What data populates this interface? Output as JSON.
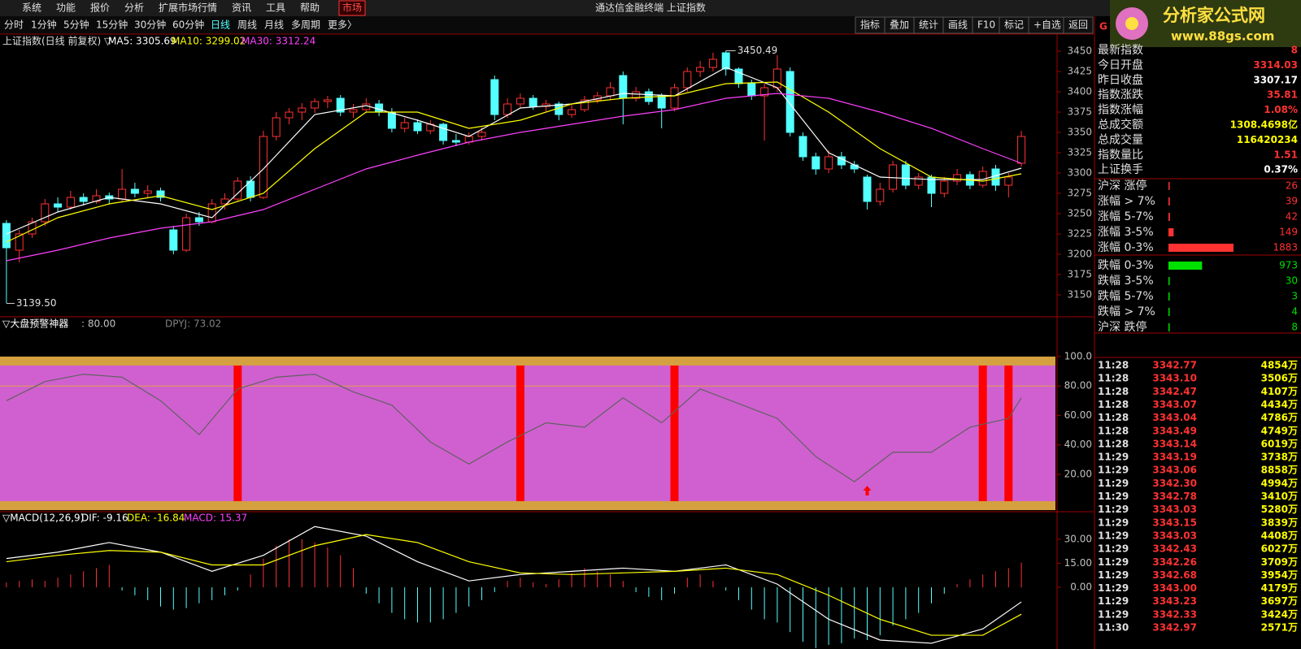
{
  "menu": {
    "items": [
      "系统",
      "功能",
      "报价",
      "分析",
      "扩展市场行情",
      "资讯",
      "工具",
      "帮助",
      "市场"
    ],
    "title": "通达信金融终端 上证指数"
  },
  "logo": {
    "name": "分析家公式网",
    "url": "www.88gs.com"
  },
  "toolbar": {
    "periods": [
      "分时",
      "1分钟",
      "5分钟",
      "15分钟",
      "30分钟",
      "60分钟",
      "日线",
      "周线",
      "月线",
      "多周期",
      "更多〉"
    ],
    "buttons": [
      "指标",
      "叠加",
      "统计",
      "画线",
      "F10",
      "标记",
      "+自选",
      "返回"
    ]
  },
  "main_chart": {
    "header": [
      {
        "text": "上证指数(日线 前复权) ▽",
        "color": "#e0e0e0"
      },
      {
        "text": "MA5: 3305.69",
        "color": "#ffffff"
      },
      {
        "text": "MA10: 3299.02",
        "color": "#ffff00"
      },
      {
        "text": "MA30: 3312.24",
        "color": "#ff40ff"
      }
    ],
    "ylim": [
      3123,
      3471
    ],
    "yticks": [
      3450,
      3425,
      3400,
      3375,
      3350,
      3325,
      3300,
      3275,
      3250,
      3225,
      3200,
      3175,
      3150
    ],
    "candles": [
      [
        3238,
        3242,
        3140,
        3208
      ],
      [
        3205,
        3230,
        3190,
        3225
      ],
      [
        3225,
        3245,
        3220,
        3240
      ],
      [
        3240,
        3268,
        3235,
        3262
      ],
      [
        3262,
        3270,
        3252,
        3258
      ],
      [
        3258,
        3278,
        3255,
        3270
      ],
      [
        3270,
        3275,
        3260,
        3265
      ],
      [
        3265,
        3280,
        3262,
        3272
      ],
      [
        3272,
        3276,
        3262,
        3268
      ],
      [
        3268,
        3305,
        3265,
        3280
      ],
      [
        3280,
        3288,
        3270,
        3275
      ],
      [
        3275,
        3285,
        3270,
        3278
      ],
      [
        3278,
        3282,
        3265,
        3270
      ],
      [
        3230,
        3235,
        3200,
        3205
      ],
      [
        3205,
        3250,
        3203,
        3245
      ],
      [
        3245,
        3252,
        3235,
        3240
      ],
      [
        3240,
        3268,
        3238,
        3262
      ],
      [
        3262,
        3275,
        3255,
        3268
      ],
      [
        3268,
        3295,
        3265,
        3290
      ],
      [
        3290,
        3296,
        3265,
        3270
      ],
      [
        3270,
        3352,
        3268,
        3345
      ],
      [
        3345,
        3375,
        3340,
        3368
      ],
      [
        3368,
        3380,
        3360,
        3375
      ],
      [
        3375,
        3386,
        3365,
        3380
      ],
      [
        3380,
        3392,
        3374,
        3388
      ],
      [
        3388,
        3395,
        3380,
        3390
      ],
      [
        3392,
        3396,
        3370,
        3375
      ],
      [
        3375,
        3385,
        3368,
        3378
      ],
      [
        3378,
        3392,
        3374,
        3385
      ],
      [
        3385,
        3390,
        3370,
        3375
      ],
      [
        3375,
        3380,
        3350,
        3355
      ],
      [
        3355,
        3368,
        3350,
        3362
      ],
      [
        3362,
        3366,
        3348,
        3352
      ],
      [
        3352,
        3365,
        3348,
        3360
      ],
      [
        3360,
        3362,
        3335,
        3340
      ],
      [
        3340,
        3348,
        3333,
        3338
      ],
      [
        3338,
        3350,
        3335,
        3345
      ],
      [
        3345,
        3356,
        3340,
        3350
      ],
      [
        3415,
        3420,
        3365,
        3372
      ],
      [
        3372,
        3392,
        3368,
        3385
      ],
      [
        3385,
        3398,
        3380,
        3392
      ],
      [
        3392,
        3396,
        3378,
        3382
      ],
      [
        3382,
        3390,
        3376,
        3385
      ],
      [
        3385,
        3388,
        3365,
        3372
      ],
      [
        3372,
        3384,
        3368,
        3378
      ],
      [
        3378,
        3395,
        3375,
        3390
      ],
      [
        3390,
        3400,
        3386,
        3395
      ],
      [
        3395,
        3412,
        3390,
        3405
      ],
      [
        3420,
        3425,
        3360,
        3392
      ],
      [
        3392,
        3406,
        3388,
        3400
      ],
      [
        3400,
        3404,
        3384,
        3388
      ],
      [
        3395,
        3398,
        3355,
        3380
      ],
      [
        3380,
        3410,
        3376,
        3405
      ],
      [
        3405,
        3430,
        3400,
        3425
      ],
      [
        3425,
        3438,
        3418,
        3430
      ],
      [
        3430,
        3448,
        3425,
        3440
      ],
      [
        3448,
        3450.49,
        3420,
        3428
      ],
      [
        3428,
        3430,
        3405,
        3410
      ],
      [
        3410,
        3415,
        3390,
        3395
      ],
      [
        3395,
        3410,
        3340,
        3405
      ],
      [
        3405,
        3445,
        3400,
        3428
      ],
      [
        3425,
        3430,
        3345,
        3350
      ],
      [
        3345,
        3350,
        3315,
        3320
      ],
      [
        3320,
        3325,
        3298,
        3305
      ],
      [
        3305,
        3328,
        3300,
        3320
      ],
      [
        3320,
        3326,
        3305,
        3310
      ],
      [
        3310,
        3315,
        3300,
        3305
      ],
      [
        3295,
        3298,
        3255,
        3265
      ],
      [
        3265,
        3288,
        3260,
        3280
      ],
      [
        3280,
        3315,
        3276,
        3310
      ],
      [
        3310,
        3315,
        3280,
        3285
      ],
      [
        3285,
        3300,
        3280,
        3295
      ],
      [
        3295,
        3298,
        3258,
        3275
      ],
      [
        3275,
        3295,
        3270,
        3290
      ],
      [
        3290,
        3305,
        3285,
        3298
      ],
      [
        3298,
        3302,
        3280,
        3285
      ],
      [
        3285,
        3308,
        3282,
        3302
      ],
      [
        3305,
        3310,
        3278,
        3285
      ],
      [
        3285,
        3300,
        3270,
        3295
      ],
      [
        3312,
        3352,
        3308,
        3345
      ]
    ],
    "up_color": "#ff3232",
    "down_color": "#54ffff",
    "ma_x": [
      0,
      4,
      8,
      12,
      16,
      20,
      24,
      28,
      32,
      36,
      40,
      44,
      48,
      52,
      56,
      60,
      64,
      68,
      72,
      76,
      79
    ],
    "series": [
      {
        "name": "MA5",
        "color": "#ffffff",
        "values": [
          3225,
          3252,
          3270,
          3262,
          3245,
          3305,
          3372,
          3383,
          3365,
          3345,
          3380,
          3385,
          3398,
          3395,
          3430,
          3405,
          3325,
          3295,
          3292,
          3292,
          3306
        ]
      },
      {
        "name": "MA10",
        "color": "#ffff00",
        "values": [
          3215,
          3245,
          3262,
          3272,
          3255,
          3275,
          3330,
          3375,
          3375,
          3355,
          3365,
          3385,
          3392,
          3395,
          3410,
          3412,
          3375,
          3330,
          3295,
          3290,
          3299
        ]
      },
      {
        "name": "MA30",
        "color": "#ff40ff",
        "values": [
          3192,
          3205,
          3220,
          3232,
          3240,
          3255,
          3280,
          3305,
          3322,
          3338,
          3350,
          3360,
          3370,
          3378,
          3392,
          3398,
          3392,
          3375,
          3355,
          3330,
          3312
        ]
      }
    ],
    "high_label": 3450.49,
    "high_at": 56,
    "low_label": {
      "value": 3139.5,
      "label": "3139.50"
    },
    "low_at": 0
  },
  "indicator": {
    "header": [
      {
        "text": "▽大盘预警神器",
        "color": "#ffffff"
      },
      {
        "text": ": 80.00",
        "color": "#c0c0c0"
      },
      {
        "text": "DPYJ: 73.02",
        "color": "#808080"
      }
    ],
    "level": 80,
    "ylim": [
      -5.4,
      121.5
    ],
    "yticks": [
      {
        "value": 100,
        "label": "100.0"
      },
      {
        "value": 80,
        "label": "80.00"
      },
      {
        "value": 60,
        "label": "60.00"
      },
      {
        "value": 40,
        "label": "40.00"
      },
      {
        "value": 20,
        "label": "20.00"
      }
    ],
    "x": [
      0,
      3,
      6,
      9,
      12,
      15,
      18,
      21,
      24,
      27,
      30,
      33,
      36,
      39,
      42,
      45,
      48,
      51,
      54,
      57,
      60,
      63,
      66,
      69,
      72,
      75,
      78,
      79
    ],
    "values": [
      70,
      83,
      88,
      86,
      70,
      47,
      78,
      86,
      88,
      76,
      67,
      42,
      27,
      42,
      55,
      52,
      72,
      55,
      78,
      68,
      58,
      32,
      15,
      35,
      35,
      52,
      58,
      72
    ],
    "signals": [
      18,
      40,
      52,
      76,
      78
    ],
    "arrow_at": 67
  },
  "macd": {
    "header": [
      {
        "text": "▽MACD(12,26,9)",
        "color": "#ffffff"
      },
      {
        "text": "DIF: -9.16",
        "color": "#ffffff"
      },
      {
        "text": "DEA: -16.84",
        "color": "#ffff00"
      },
      {
        "text": "MACD: 15.37",
        "color": "#ff40ff"
      }
    ],
    "ylim": [
      -38.6,
      42.2
    ],
    "yticks": [
      {
        "value": 30,
        "label": "30.00"
      },
      {
        "value": 15,
        "label": "15.00"
      },
      {
        "value": 0,
        "label": "0.00"
      }
    ],
    "x": [
      0,
      4,
      8,
      12,
      16,
      20,
      24,
      28,
      32,
      36,
      40,
      44,
      48,
      52,
      56,
      60,
      64,
      68,
      72,
      76,
      79
    ],
    "dif": [
      18,
      22,
      28,
      22,
      10,
      20,
      38,
      32,
      16,
      4,
      8,
      10,
      12,
      10,
      14,
      2,
      -20,
      -33,
      -35,
      -26,
      -9.16
    ],
    "dea": [
      16,
      20,
      23,
      22,
      14,
      14,
      26,
      33,
      28,
      16,
      9,
      8,
      9,
      10,
      12,
      8,
      -5,
      -20,
      -30,
      -30,
      -16.84
    ],
    "hist": [
      3,
      4,
      5,
      4,
      6,
      8,
      10,
      12,
      14,
      -2,
      -5,
      -8,
      -12,
      -14,
      -13,
      -10,
      -8,
      -5,
      -2,
      8,
      18,
      26,
      30,
      30,
      28,
      25,
      20,
      12,
      -4,
      -10,
      -16,
      -20,
      -22,
      -22,
      -20,
      -16,
      -12,
      -8,
      -3,
      4,
      6,
      3,
      2,
      5,
      9,
      12,
      10,
      8,
      4,
      -3,
      -6,
      -8,
      -4,
      6,
      8,
      4,
      -2,
      -8,
      -14,
      -20,
      -22,
      -28,
      -34,
      -38,
      -36,
      -35,
      -32,
      -33,
      -30,
      -24,
      -20,
      -16,
      -10,
      -4,
      2,
      5,
      8,
      10,
      12,
      15.37
    ]
  },
  "quote": {
    "header": "G",
    "rows": [
      {
        "label": "最新指数",
        "value": "8",
        "color": "#ff3232"
      },
      {
        "label": "今日开盘",
        "value": "3314.03",
        "color": "#ff3232"
      },
      {
        "label": "昨日收盘",
        "value": "3307.17",
        "color": "#ffffff"
      },
      {
        "label": "指数涨跌",
        "value": "35.81",
        "color": "#ff3232"
      },
      {
        "label": "指数涨幅",
        "value": "1.08%",
        "color": "#ff3232"
      },
      {
        "label": "总成交额",
        "value": "1308.4698亿",
        "color": "#ffff00"
      },
      {
        "label": "总成交量",
        "value": "116420234",
        "color": "#ffff00"
      },
      {
        "label": "指数量比",
        "value": "1.51",
        "color": "#ff3232"
      },
      {
        "label": "上证换手",
        "value": "0.37%",
        "color": "#ffffff"
      }
    ]
  },
  "breadth": {
    "rows": [
      {
        "label": "沪深 涨停",
        "value": 26,
        "color": "#ff3232"
      },
      {
        "label": "涨幅 > 7%",
        "value": 39,
        "color": "#ff3232"
      },
      {
        "label": "涨幅 5-7%",
        "value": 42,
        "color": "#ff3232"
      },
      {
        "label": "涨幅 3-5%",
        "value": 149,
        "color": "#ff3232"
      },
      {
        "label": "涨幅 0-3%",
        "value": 1883,
        "color": "#ff3232"
      },
      {
        "label": "跌幅 0-3%",
        "value": 973,
        "color": "#00e000"
      },
      {
        "label": "跌幅 3-5%",
        "value": 30,
        "color": "#00e000"
      },
      {
        "label": "跌幅 5-7%",
        "value": 3,
        "color": "#00e000"
      },
      {
        "label": "跌幅 > 7%",
        "value": 4,
        "color": "#00e000"
      },
      {
        "label": "沪深 跌停",
        "value": 8,
        "color": "#00e000"
      }
    ]
  },
  "ticks": {
    "price_color": "#ff3232",
    "volume_color": "#ffff00",
    "rows": [
      [
        "11:28",
        "3342.77",
        "4854万"
      ],
      [
        "11:28",
        "3343.10",
        "3506万"
      ],
      [
        "11:28",
        "3342.47",
        "4107万"
      ],
      [
        "11:28",
        "3343.07",
        "4434万"
      ],
      [
        "11:28",
        "3343.04",
        "4786万"
      ],
      [
        "11:28",
        "3343.49",
        "4749万"
      ],
      [
        "11:28",
        "3343.14",
        "6019万"
      ],
      [
        "11:29",
        "3343.19",
        "3738万"
      ],
      [
        "11:29",
        "3343.06",
        "8858万"
      ],
      [
        "11:29",
        "3342.30",
        "4994万"
      ],
      [
        "11:29",
        "3342.78",
        "3410万"
      ],
      [
        "11:29",
        "3343.03",
        "5280万"
      ],
      [
        "11:29",
        "3343.15",
        "3839万"
      ],
      [
        "11:29",
        "3343.03",
        "4408万"
      ],
      [
        "11:29",
        "3342.43",
        "6027万"
      ],
      [
        "11:29",
        "3342.26",
        "3709万"
      ],
      [
        "11:29",
        "3342.68",
        "3954万"
      ],
      [
        "11:29",
        "3343.00",
        "4179万"
      ],
      [
        "11:29",
        "3343.23",
        "3697万"
      ],
      [
        "11:29",
        "3342.33",
        "3424万"
      ],
      [
        "11:30",
        "3342.97",
        "2571万"
      ]
    ]
  }
}
